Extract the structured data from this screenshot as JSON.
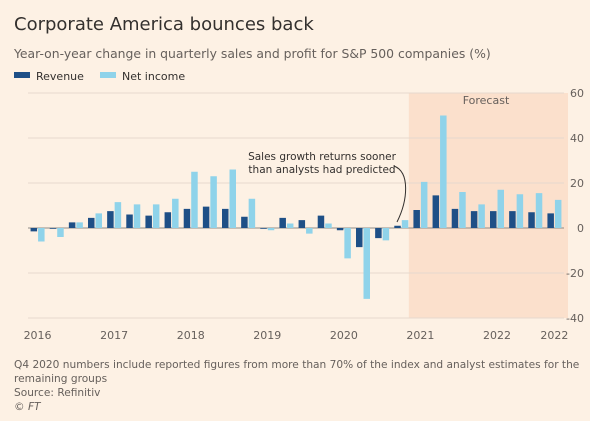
{
  "chart_data": {
    "type": "bar",
    "title": "Corporate America bounces back",
    "subtitle": "Year-on-year change in quarterly sales and profit for S&P 500 companies (%)",
    "legend_position": "top-left",
    "grid": true,
    "ylim": [
      -40,
      60
    ],
    "yticks": [
      60,
      40,
      20,
      0,
      -20,
      -40
    ],
    "x_tick_labels": [
      "2016",
      "2017",
      "2018",
      "2019",
      "2020",
      "2021",
      "2022",
      "2022"
    ],
    "forecast_label": "Forecast",
    "forecast_start_index": 20,
    "annotation": "Sales growth returns sooner\nthan analysts had predicted",
    "series": [
      {
        "name": "Revenue",
        "color": "#1e4f86",
        "values": [
          -1.5,
          0,
          2.5,
          4.5,
          7.5,
          6,
          5.5,
          7,
          8.5,
          9.5,
          8.5,
          5,
          0,
          4.5,
          3.5,
          5.5,
          -1,
          -8.5,
          -4.5,
          1,
          8,
          14.5,
          8.5,
          7.5,
          7.5,
          7.5,
          7,
          6.5
        ]
      },
      {
        "name": "Net income",
        "color": "#8fd3ea",
        "values": [
          -6,
          -4,
          2.5,
          6.5,
          11.5,
          10.5,
          10.5,
          13,
          25,
          23,
          26,
          13,
          -1,
          2,
          -2.5,
          2,
          -13.5,
          -31.5,
          -5.5,
          3.5,
          20.5,
          50,
          16,
          10.5,
          17,
          15,
          15.5,
          12.5
        ]
      }
    ]
  },
  "footnote": "Q4 2020 numbers include reported figures from more than 70% of the index and analyst estimates for the remaining groups",
  "source": "Source: Refinitiv",
  "credit": "© FT"
}
